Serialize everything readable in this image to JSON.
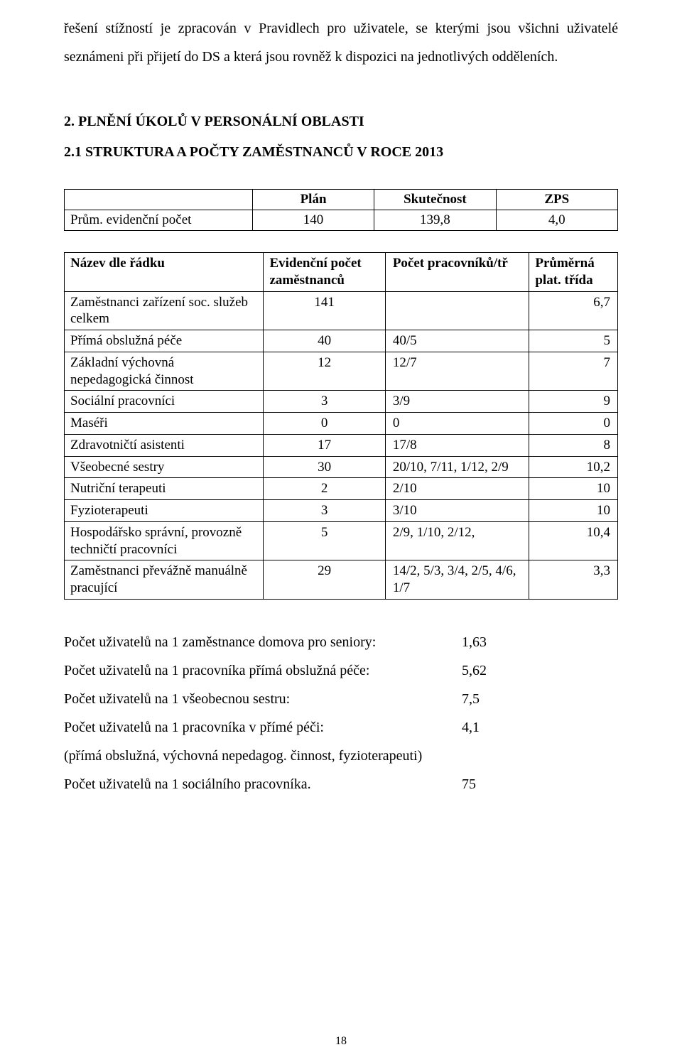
{
  "intro": {
    "line1_a": "řešení stížností je zpracován v",
    "line1_b": " Pravidlech pro uživatele, se kterými jsou všichni uživatelé",
    "line2": "seznámeni při přijetí do DS a která jsou rovněž k dispozici na jednotlivých odděleních."
  },
  "section": {
    "heading": "2. PLNĚNÍ ÚKOLŮ V PERSONÁLNÍ OBLASTI",
    "subheading": "2.1 STRUKTURA A POČTY ZAMĚSTNANCŮ V ROCE 2013"
  },
  "plan_table": {
    "headers": [
      "",
      "Plán",
      "Skutečnost",
      "ZPS"
    ],
    "row_label": "Prům. evidenční počet",
    "row_values": [
      "140",
      "139,8",
      "4,0"
    ]
  },
  "main_table": {
    "headers": [
      "Název dle řádku",
      "Evidenční počet zaměstnanců",
      "Počet pracovníků/tř",
      "Průměrná plat. třída"
    ],
    "rows": [
      {
        "label": "Zaměstnanci zařízení soc. služeb celkem",
        "c1": "141",
        "c2": "",
        "c3": "6,7"
      },
      {
        "label": "Přímá obslužná péče",
        "c1": "40",
        "c2": "40/5",
        "c3": "5"
      },
      {
        "label": "Základní výchovná nepedagogická činnost",
        "c1": "12",
        "c2": "12/7",
        "c3": "7"
      },
      {
        "label": "Sociální pracovníci",
        "c1": "3",
        "c2": "3/9",
        "c3": "9"
      },
      {
        "label": "Maséři",
        "c1": "0",
        "c2": "0",
        "c3": "0"
      },
      {
        "label": "Zdravotničtí asistenti",
        "c1": "17",
        "c2": "17/8",
        "c3": "8"
      },
      {
        "label": "Všeobecné sestry",
        "c1": "30",
        "c2": "20/10, 7/11,  1/12, 2/9",
        "c3": "10,2"
      },
      {
        "label": "Nutriční terapeuti",
        "c1": "2",
        "c2": "2/10",
        "c3": "10"
      },
      {
        "label": "Fyzioterapeuti",
        "c1": "3",
        "c2": "3/10",
        "c3": "10"
      },
      {
        "label": "Hospodářsko správní, provozně techničtí pracovníci",
        "c1": "5",
        "c2": "2/9, 1/10, 2/12,",
        "c3": "10,4"
      },
      {
        "label": "Zaměstnanci převážně manuálně pracující",
        "c1": "29",
        "c2": "14/2, 5/3, 3/4,  2/5, 4/6, 1/7",
        "c3": "3,3"
      }
    ]
  },
  "ratios": [
    {
      "label": "Počet uživatelů na 1 zaměstnance domova pro seniory:",
      "value": "1,63"
    },
    {
      "label": "Počet uživatelů na 1 pracovníka přímá obslužná péče:",
      "value": "5,62"
    },
    {
      "label": "Počet uživatelů na 1 všeobecnou sestru:",
      "value": "7,5"
    },
    {
      "label": "Počet uživatelů na 1 pracovníka v přímé péči:",
      "value": "4,1"
    },
    {
      "label": "(přímá obslužná, výchovná nepedagog. činnost, fyzioterapeuti)",
      "value": ""
    },
    {
      "label": "Počet uživatelů na 1 sociálního pracovníka.",
      "value": "75"
    }
  ],
  "page_number": "18"
}
